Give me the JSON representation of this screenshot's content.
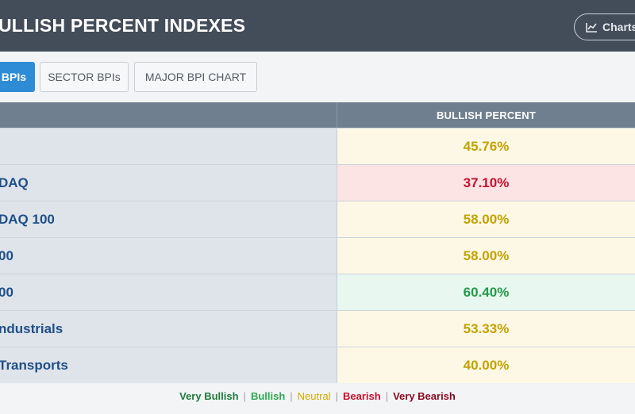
{
  "header": {
    "title": "ULLISH PERCENT INDEXES",
    "charts_label": "Charts"
  },
  "tabs": [
    {
      "label": "BPIs",
      "active": true
    },
    {
      "label": "SECTOR BPIs",
      "active": false
    },
    {
      "label": "MAJOR BPI CHART",
      "active": false
    }
  ],
  "table": {
    "columns": [
      "",
      "BULLISH PERCENT"
    ],
    "rows": [
      {
        "name": "",
        "value": "45.76%",
        "status": "neutral"
      },
      {
        "name": "DAQ",
        "value": "37.10%",
        "status": "bearish"
      },
      {
        "name": "DAQ 100",
        "value": "58.00%",
        "status": "neutral"
      },
      {
        "name": "00",
        "value": "58.00%",
        "status": "neutral"
      },
      {
        "name": "00",
        "value": "60.40%",
        "status": "bullish"
      },
      {
        "name": "ndustrials",
        "value": "53.33%",
        "status": "neutral"
      },
      {
        "name": "Transports",
        "value": "40.00%",
        "status": "neutral"
      }
    ]
  },
  "legend": {
    "very_bullish": "Very Bullish",
    "bullish": "Bullish",
    "neutral": "Neutral",
    "bearish": "Bearish",
    "very_bearish": "Very Bearish",
    "separator": "|"
  },
  "colors": {
    "header_bg": "#434c59",
    "active_tab": "#2e8bd6",
    "neutral": "#c2a200",
    "bearish": "#c8102e",
    "bullish": "#24994a"
  }
}
